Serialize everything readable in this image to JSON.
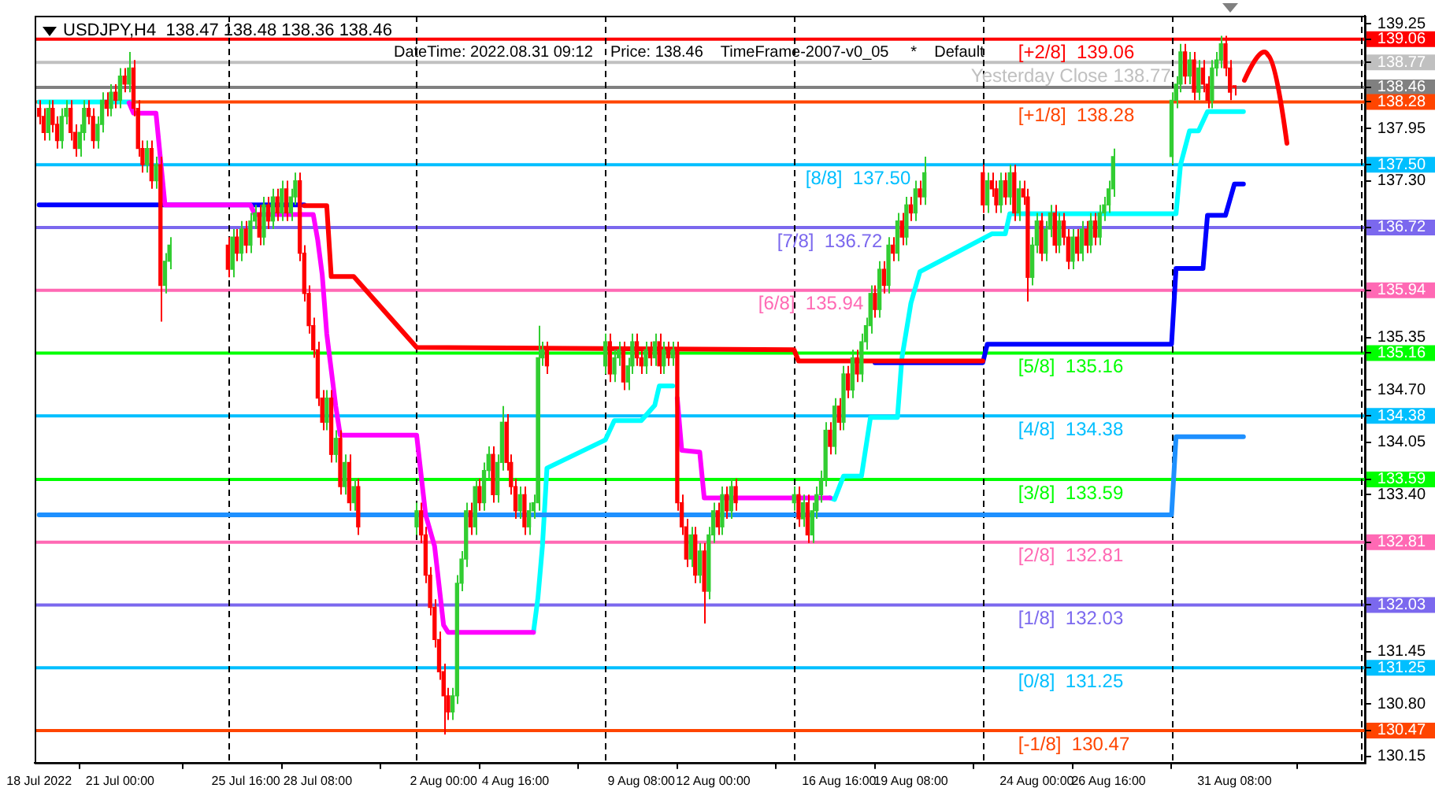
{
  "chart_data": {
    "type": "candlestick",
    "title": "USDJPY,H4  138.47 138.48 138.36 138.46",
    "annotations": [
      "DateTime: 2022.08.31 09:12    Price: 138.46    TimeFrame-2007-v0_05     *    Default"
    ],
    "x": [
      "2022-07-18T00:00",
      "2022-07-18T04:00",
      "2022-07-18T08:00",
      "2022-07-18T12:00",
      "2022-07-18T16:00",
      "2022-07-18T20:00",
      "2022-07-19T00:00",
      "2022-07-19T04:00",
      "2022-07-19T08:00",
      "2022-07-19T12:00",
      "2022-07-19T16:00",
      "2022-07-19T20:00",
      "2022-07-20T00:00",
      "2022-07-20T04:00",
      "2022-07-20T08:00",
      "2022-07-20T12:00",
      "2022-07-20T16:00",
      "2022-07-20T20:00",
      "2022-07-21T00:00",
      "2022-07-21T04:00",
      "2022-07-21T08:00",
      "2022-07-21T12:00",
      "2022-07-21T16:00",
      "2022-07-21T20:00",
      "2022-07-22T00:00",
      "2022-07-22T04:00",
      "2022-07-22T08:00",
      "2022-07-22T12:00",
      "2022-07-22T16:00",
      "2022-07-22T20:00",
      "2022-07-25T00:00",
      "2022-07-25T04:00",
      "2022-07-25T08:00",
      "2022-07-25T12:00",
      "2022-07-25T16:00",
      "2022-07-25T20:00",
      "2022-07-26T00:00",
      "2022-07-26T04:00",
      "2022-07-26T08:00",
      "2022-07-26T12:00",
      "2022-07-26T16:00",
      "2022-07-26T20:00",
      "2022-07-27T00:00",
      "2022-07-27T04:00",
      "2022-07-27T08:00",
      "2022-07-27T12:00",
      "2022-07-27T16:00",
      "2022-07-27T20:00",
      "2022-07-28T00:00",
      "2022-07-28T04:00",
      "2022-07-28T08:00",
      "2022-07-28T12:00",
      "2022-07-28T16:00",
      "2022-07-28T20:00",
      "2022-07-29T00:00",
      "2022-07-29T04:00",
      "2022-07-29T08:00",
      "2022-07-29T12:00",
      "2022-07-29T16:00",
      "2022-07-29T20:00",
      "2022-08-01T00:00",
      "2022-08-01T04:00",
      "2022-08-01T08:00",
      "2022-08-01T12:00",
      "2022-08-01T16:00",
      "2022-08-01T20:00",
      "2022-08-02T00:00",
      "2022-08-02T04:00",
      "2022-08-02T08:00",
      "2022-08-02T12:00",
      "2022-08-02T16:00",
      "2022-08-02T20:00",
      "2022-08-03T00:00",
      "2022-08-03T04:00",
      "2022-08-03T08:00",
      "2022-08-03T12:00",
      "2022-08-03T16:00",
      "2022-08-03T20:00",
      "2022-08-04T00:00",
      "2022-08-04T04:00",
      "2022-08-04T08:00",
      "2022-08-04T12:00",
      "2022-08-04T16:00",
      "2022-08-04T20:00",
      "2022-08-05T00:00",
      "2022-08-05T04:00",
      "2022-08-05T08:00",
      "2022-08-05T12:00",
      "2022-08-05T16:00",
      "2022-08-05T20:00",
      "2022-08-08T00:00",
      "2022-08-08T04:00",
      "2022-08-08T08:00",
      "2022-08-08T12:00",
      "2022-08-08T16:00",
      "2022-08-08T20:00",
      "2022-08-09T00:00",
      "2022-08-09T04:00",
      "2022-08-09T08:00",
      "2022-08-09T12:00",
      "2022-08-09T16:00",
      "2022-08-09T20:00",
      "2022-08-10T00:00",
      "2022-08-10T04:00",
      "2022-08-10T08:00",
      "2022-08-10T12:00",
      "2022-08-10T16:00",
      "2022-08-10T20:00",
      "2022-08-11T00:00",
      "2022-08-11T04:00",
      "2022-08-11T08:00",
      "2022-08-11T12:00",
      "2022-08-11T16:00",
      "2022-08-11T20:00",
      "2022-08-12T00:00",
      "2022-08-12T04:00",
      "2022-08-12T08:00",
      "2022-08-12T12:00",
      "2022-08-12T16:00",
      "2022-08-12T20:00",
      "2022-08-15T00:00",
      "2022-08-15T04:00",
      "2022-08-15T08:00",
      "2022-08-15T12:00",
      "2022-08-15T16:00",
      "2022-08-15T20:00",
      "2022-08-16T00:00",
      "2022-08-16T04:00",
      "2022-08-16T08:00",
      "2022-08-16T12:00",
      "2022-08-16T16:00",
      "2022-08-16T20:00",
      "2022-08-17T00:00",
      "2022-08-17T04:00",
      "2022-08-17T08:00",
      "2022-08-17T12:00",
      "2022-08-17T16:00",
      "2022-08-17T20:00",
      "2022-08-18T00:00",
      "2022-08-18T04:00",
      "2022-08-18T08:00",
      "2022-08-18T12:00",
      "2022-08-18T16:00",
      "2022-08-18T20:00",
      "2022-08-19T00:00",
      "2022-08-19T04:00",
      "2022-08-19T08:00",
      "2022-08-19T12:00",
      "2022-08-19T16:00",
      "2022-08-19T20:00",
      "2022-08-22T00:00",
      "2022-08-22T04:00",
      "2022-08-22T08:00",
      "2022-08-22T12:00",
      "2022-08-22T16:00",
      "2022-08-22T20:00",
      "2022-08-23T00:00",
      "2022-08-23T04:00",
      "2022-08-23T08:00",
      "2022-08-23T12:00",
      "2022-08-23T16:00",
      "2022-08-23T20:00",
      "2022-08-24T00:00",
      "2022-08-24T04:00",
      "2022-08-24T08:00",
      "2022-08-24T12:00",
      "2022-08-24T16:00",
      "2022-08-24T20:00",
      "2022-08-25T00:00",
      "2022-08-25T04:00",
      "2022-08-25T08:00",
      "2022-08-25T12:00",
      "2022-08-25T16:00",
      "2022-08-25T20:00",
      "2022-08-26T00:00",
      "2022-08-26T04:00",
      "2022-08-26T08:00",
      "2022-08-26T12:00",
      "2022-08-26T16:00",
      "2022-08-26T20:00",
      "2022-08-29T00:00",
      "2022-08-29T04:00",
      "2022-08-29T08:00",
      "2022-08-29T12:00",
      "2022-08-29T16:00",
      "2022-08-29T20:00",
      "2022-08-30T00:00",
      "2022-08-30T04:00",
      "2022-08-30T08:00",
      "2022-08-30T12:00",
      "2022-08-30T16:00",
      "2022-08-30T20:00",
      "2022-08-31T00:00",
      "2022-08-31T04:00",
      "2022-08-31T08:00"
    ],
    "ohlc": [
      [
        138.2,
        138.3,
        138.0,
        138.1
      ],
      [
        138.1,
        138.2,
        137.8,
        137.9
      ],
      [
        137.9,
        138.3,
        137.8,
        138.2
      ],
      [
        138.2,
        138.3,
        137.9,
        138.0
      ],
      [
        138.0,
        138.1,
        137.7,
        137.8
      ],
      [
        137.8,
        138.2,
        137.7,
        138.1
      ],
      [
        138.1,
        138.3,
        138.0,
        138.2
      ],
      [
        138.2,
        138.3,
        137.8,
        137.9
      ],
      [
        137.9,
        138.0,
        137.6,
        137.7
      ],
      [
        137.7,
        138.0,
        137.6,
        137.9
      ],
      [
        137.9,
        138.3,
        137.8,
        138.2
      ],
      [
        138.2,
        138.3,
        138.0,
        138.1
      ],
      [
        138.1,
        138.2,
        137.7,
        137.8
      ],
      [
        137.8,
        138.1,
        137.7,
        138.0
      ],
      [
        138.0,
        138.4,
        137.9,
        138.3
      ],
      [
        138.3,
        138.4,
        138.1,
        138.2
      ],
      [
        138.2,
        138.5,
        138.1,
        138.4
      ],
      [
        138.4,
        138.5,
        138.2,
        138.3
      ],
      [
        138.3,
        138.7,
        138.2,
        138.6
      ],
      [
        138.6,
        138.7,
        138.4,
        138.5
      ],
      [
        138.5,
        138.9,
        138.4,
        138.7
      ],
      [
        138.7,
        138.8,
        138.1,
        138.2
      ],
      [
        138.2,
        138.3,
        137.6,
        137.7
      ],
      [
        137.7,
        137.8,
        137.4,
        137.5
      ],
      [
        137.5,
        137.8,
        137.4,
        137.7
      ],
      [
        137.7,
        137.8,
        137.2,
        137.3
      ],
      [
        137.3,
        137.6,
        137.2,
        137.5
      ],
      [
        137.5,
        137.6,
        135.55,
        136.0
      ],
      [
        136.0,
        136.4,
        135.9,
        136.3
      ],
      [
        136.3,
        136.6,
        136.2,
        136.5
      ],
      [
        136.5,
        136.6,
        136.1,
        136.2
      ],
      [
        136.2,
        136.7,
        136.1,
        136.6
      ],
      [
        136.6,
        136.7,
        136.3,
        136.4
      ],
      [
        136.4,
        136.8,
        136.3,
        136.7
      ],
      [
        136.7,
        136.8,
        136.4,
        136.5
      ],
      [
        136.5,
        136.9,
        136.4,
        136.8
      ],
      [
        136.8,
        137.0,
        136.7,
        136.9
      ],
      [
        136.9,
        137.0,
        136.5,
        136.6
      ],
      [
        136.6,
        137.1,
        136.5,
        137.0
      ],
      [
        137.0,
        137.1,
        136.7,
        136.8
      ],
      [
        136.8,
        137.2,
        136.7,
        137.1
      ],
      [
        137.1,
        137.2,
        136.8,
        136.9
      ],
      [
        136.9,
        137.3,
        136.8,
        137.2
      ],
      [
        137.2,
        137.3,
        136.8,
        136.9
      ],
      [
        136.9,
        137.2,
        136.8,
        137.1
      ],
      [
        137.1,
        137.4,
        137.0,
        137.3
      ],
      [
        137.3,
        137.4,
        136.3,
        136.4
      ],
      [
        136.4,
        136.5,
        135.8,
        135.9
      ],
      [
        135.9,
        136.0,
        135.4,
        135.5
      ],
      [
        135.5,
        135.6,
        135.1,
        135.2
      ],
      [
        135.2,
        135.3,
        134.5,
        134.6
      ],
      [
        134.6,
        134.7,
        134.2,
        134.3
      ],
      [
        134.3,
        134.7,
        134.2,
        134.6
      ],
      [
        134.6,
        134.7,
        133.8,
        133.9
      ],
      [
        133.9,
        134.2,
        133.8,
        134.1
      ],
      [
        134.1,
        134.2,
        133.4,
        133.5
      ],
      [
        133.5,
        133.9,
        133.4,
        133.8
      ],
      [
        133.8,
        133.9,
        133.2,
        133.3
      ],
      [
        133.3,
        133.6,
        133.2,
        133.5
      ],
      [
        133.5,
        133.6,
        132.9,
        133.0
      ],
      [
        133.0,
        133.3,
        132.9,
        133.2
      ],
      [
        133.2,
        133.3,
        132.8,
        132.9
      ],
      [
        132.9,
        133.0,
        132.3,
        132.4
      ],
      [
        132.4,
        132.5,
        131.9,
        132.0
      ],
      [
        132.0,
        132.1,
        131.5,
        131.6
      ],
      [
        131.6,
        131.7,
        131.1,
        131.2
      ],
      [
        131.2,
        131.3,
        130.42,
        130.9
      ],
      [
        130.9,
        131.0,
        130.6,
        130.7
      ],
      [
        130.7,
        131.0,
        130.6,
        130.9
      ],
      [
        130.9,
        132.4,
        130.8,
        132.3
      ],
      [
        132.3,
        132.7,
        132.2,
        132.6
      ],
      [
        132.6,
        133.3,
        132.5,
        133.2
      ],
      [
        133.2,
        133.3,
        132.9,
        133.0
      ],
      [
        133.0,
        133.6,
        132.9,
        133.5
      ],
      [
        133.5,
        133.6,
        133.2,
        133.3
      ],
      [
        133.3,
        133.8,
        133.2,
        133.7
      ],
      [
        133.7,
        134.0,
        133.6,
        133.9
      ],
      [
        133.9,
        134.0,
        133.3,
        133.4
      ],
      [
        133.4,
        133.9,
        133.3,
        133.8
      ],
      [
        133.8,
        134.5,
        133.7,
        134.3
      ],
      [
        134.3,
        134.4,
        133.7,
        133.8
      ],
      [
        133.8,
        133.9,
        133.4,
        133.5
      ],
      [
        133.5,
        133.6,
        133.1,
        133.2
      ],
      [
        133.2,
        133.5,
        133.1,
        133.4
      ],
      [
        133.4,
        133.5,
        132.9,
        133.0
      ],
      [
        133.0,
        133.3,
        132.9,
        133.2
      ],
      [
        133.2,
        133.4,
        133.1,
        133.3
      ],
      [
        133.3,
        135.5,
        133.2,
        135.1
      ],
      [
        135.1,
        135.3,
        135.0,
        135.2
      ],
      [
        135.2,
        135.3,
        134.9,
        135.0
      ],
      [
        135.0,
        135.4,
        134.9,
        135.3
      ],
      [
        135.3,
        135.4,
        134.8,
        134.9
      ],
      [
        134.9,
        135.2,
        134.8,
        135.1
      ],
      [
        135.1,
        135.3,
        135.0,
        135.2
      ],
      [
        135.2,
        135.3,
        134.7,
        134.8
      ],
      [
        134.8,
        135.1,
        134.7,
        135.0
      ],
      [
        135.0,
        135.4,
        134.9,
        135.3
      ],
      [
        135.3,
        135.4,
        135.0,
        135.1
      ],
      [
        135.1,
        135.2,
        134.9,
        135.0
      ],
      [
        135.0,
        135.3,
        134.9,
        135.2
      ],
      [
        135.2,
        135.3,
        135.0,
        135.1
      ],
      [
        135.1,
        135.4,
        135.0,
        135.3
      ],
      [
        135.3,
        135.4,
        134.9,
        135.0
      ],
      [
        135.0,
        135.3,
        134.9,
        135.2
      ],
      [
        135.2,
        135.3,
        135.0,
        135.1
      ],
      [
        135.1,
        135.3,
        135.0,
        135.2
      ],
      [
        135.2,
        135.3,
        133.2,
        133.3
      ],
      [
        133.3,
        133.4,
        132.9,
        133.0
      ],
      [
        133.0,
        133.1,
        132.5,
        132.6
      ],
      [
        132.6,
        133.0,
        132.5,
        132.9
      ],
      [
        132.9,
        133.0,
        132.3,
        132.4
      ],
      [
        132.4,
        132.8,
        132.3,
        132.7
      ],
      [
        132.7,
        132.8,
        131.8,
        132.2
      ],
      [
        132.2,
        133.0,
        132.1,
        132.9
      ],
      [
        132.9,
        133.3,
        132.8,
        133.2
      ],
      [
        133.2,
        133.3,
        132.9,
        133.0
      ],
      [
        133.0,
        133.5,
        132.9,
        133.4
      ],
      [
        133.4,
        133.5,
        133.1,
        133.2
      ],
      [
        133.2,
        133.6,
        133.1,
        133.5
      ],
      [
        133.5,
        133.6,
        133.2,
        133.3
      ],
      [
        133.3,
        133.5,
        133.2,
        133.4
      ],
      [
        133.4,
        133.5,
        133.0,
        133.1
      ],
      [
        133.1,
        133.4,
        133.0,
        133.3
      ],
      [
        133.3,
        133.4,
        132.8,
        132.9
      ],
      [
        132.9,
        133.3,
        132.8,
        133.2
      ],
      [
        133.2,
        133.5,
        133.1,
        133.4
      ],
      [
        133.4,
        133.7,
        133.3,
        133.6
      ],
      [
        133.6,
        134.3,
        133.5,
        134.2
      ],
      [
        134.2,
        134.3,
        133.9,
        134.0
      ],
      [
        134.0,
        134.6,
        133.9,
        134.5
      ],
      [
        134.5,
        134.6,
        134.2,
        134.3
      ],
      [
        134.3,
        135.0,
        134.2,
        134.9
      ],
      [
        134.9,
        135.0,
        134.6,
        134.7
      ],
      [
        134.7,
        135.2,
        134.6,
        135.1
      ],
      [
        135.1,
        135.2,
        134.8,
        134.9
      ],
      [
        134.9,
        135.4,
        134.8,
        135.3
      ],
      [
        135.3,
        135.6,
        135.2,
        135.5
      ],
      [
        135.5,
        136.0,
        135.4,
        135.9
      ],
      [
        135.9,
        136.0,
        135.6,
        135.7
      ],
      [
        135.7,
        136.3,
        135.6,
        136.2
      ],
      [
        136.2,
        136.3,
        135.9,
        136.0
      ],
      [
        136.0,
        136.6,
        135.9,
        136.5
      ],
      [
        136.5,
        136.6,
        136.3,
        136.4
      ],
      [
        136.4,
        136.9,
        136.3,
        136.8
      ],
      [
        136.8,
        136.9,
        136.5,
        136.6
      ],
      [
        136.6,
        137.1,
        136.5,
        137.0
      ],
      [
        137.0,
        137.1,
        136.8,
        136.9
      ],
      [
        136.9,
        137.3,
        136.8,
        137.2
      ],
      [
        137.2,
        137.3,
        137.0,
        137.1
      ],
      [
        137.1,
        137.6,
        137.0,
        137.4
      ],
      [
        137.4,
        137.5,
        136.9,
        137.0
      ],
      [
        137.0,
        137.4,
        136.9,
        137.3
      ],
      [
        137.3,
        137.4,
        137.1,
        137.2
      ],
      [
        137.2,
        137.3,
        136.9,
        137.0
      ],
      [
        137.0,
        137.4,
        136.9,
        137.3
      ],
      [
        137.3,
        137.4,
        137.0,
        137.1
      ],
      [
        137.1,
        137.5,
        137.0,
        137.4
      ],
      [
        137.4,
        137.5,
        136.8,
        136.9
      ],
      [
        136.9,
        137.3,
        136.8,
        137.2
      ],
      [
        137.2,
        137.3,
        137.0,
        137.1
      ],
      [
        137.1,
        137.2,
        135.8,
        136.1
      ],
      [
        136.1,
        136.6,
        136.0,
        136.5
      ],
      [
        136.5,
        136.9,
        136.4,
        136.8
      ],
      [
        136.8,
        136.9,
        136.3,
        136.4
      ],
      [
        136.4,
        136.8,
        136.3,
        136.7
      ],
      [
        136.7,
        137.0,
        136.6,
        136.9
      ],
      [
        136.9,
        137.0,
        136.4,
        136.5
      ],
      [
        136.5,
        136.9,
        136.4,
        136.8
      ],
      [
        136.8,
        136.9,
        136.5,
        136.6
      ],
      [
        136.6,
        136.7,
        136.2,
        136.3
      ],
      [
        136.3,
        136.7,
        136.2,
        136.6
      ],
      [
        136.6,
        136.7,
        136.3,
        136.4
      ],
      [
        136.4,
        136.8,
        136.3,
        136.7
      ],
      [
        136.7,
        136.8,
        136.4,
        136.5
      ],
      [
        136.5,
        136.9,
        136.4,
        136.8
      ],
      [
        136.8,
        136.9,
        136.5,
        136.6
      ],
      [
        136.6,
        137.0,
        136.5,
        136.9
      ],
      [
        136.9,
        137.1,
        136.8,
        137.0
      ],
      [
        137.0,
        137.3,
        136.9,
        137.2
      ],
      [
        137.2,
        137.7,
        137.1,
        137.6
      ],
      [
        137.6,
        138.4,
        137.5,
        138.3
      ],
      [
        138.3,
        138.6,
        138.2,
        138.5
      ],
      [
        138.5,
        139.0,
        138.4,
        138.9
      ],
      [
        138.9,
        139.0,
        138.5,
        138.6
      ],
      [
        138.6,
        138.9,
        138.5,
        138.8
      ],
      [
        138.8,
        138.9,
        138.3,
        138.4
      ],
      [
        138.4,
        138.8,
        138.3,
        138.7
      ],
      [
        138.7,
        138.8,
        138.4,
        138.5
      ],
      [
        138.5,
        138.6,
        138.2,
        138.3
      ],
      [
        138.3,
        138.8,
        138.2,
        138.7
      ],
      [
        138.7,
        138.9,
        138.6,
        138.8
      ],
      [
        138.8,
        139.1,
        138.7,
        139.0
      ],
      [
        139.0,
        139.1,
        138.6,
        138.7
      ],
      [
        138.7,
        138.8,
        138.3,
        138.4
      ],
      [
        138.47,
        138.48,
        138.36,
        138.46
      ]
    ],
    "series": [
      {
        "type": "line",
        "color": "#ff00ff",
        "x": [
          "2022-07-21T08:00",
          "2022-07-21T12:00",
          "2022-07-22T08:00",
          "2022-07-22T16:00",
          "2022-07-25T20:00",
          "2022-07-26T00:00",
          "2022-07-28T04:00",
          "2022-07-28T08:00",
          "2022-07-28T12:00",
          "2022-07-28T16:00",
          "2022-07-29T00:00",
          "2022-07-29T04:00",
          "2022-08-01T00:00",
          "2022-08-01T08:00",
          "2022-08-01T16:00",
          "2022-08-02T00:00",
          "2022-08-02T04:00",
          "2022-08-05T08:00"
        ],
        "values": [
          138.27,
          138.14,
          138.14,
          137.0,
          137.0,
          136.88,
          136.88,
          136.56,
          136.13,
          135.4,
          134.5,
          134.14,
          134.14,
          133.15,
          132.76,
          131.78,
          131.69,
          131.69
        ]
      },
      {
        "type": "line",
        "color": "#ff00ff",
        "x": [
          "2022-08-10T16:00",
          "2022-08-10T20:00",
          "2022-08-11T12:00",
          "2022-08-11T16:00",
          "2022-08-16T08:00"
        ],
        "values": [
          134.6,
          133.95,
          133.93,
          133.36,
          133.36
        ]
      },
      {
        "type": "line",
        "color": "#ff0000",
        "x": [
          "2022-07-27T20:00",
          "2022-07-28T16:00",
          "2022-07-28T20:00",
          "2022-07-29T16:00",
          "2022-08-01T00:00",
          "2022-08-15T00:00",
          "2022-08-15T04:00",
          "2022-08-22T00:00"
        ],
        "values": [
          136.99,
          136.99,
          136.11,
          136.11,
          135.23,
          135.2,
          135.06,
          135.06
        ]
      },
      {
        "type": "line",
        "color": "#0000ff",
        "x": [
          "2022-07-18T00:00",
          "2022-07-27T20:00"
        ],
        "values": [
          137.0,
          137.0
        ]
      },
      {
        "type": "line",
        "color": "#0000ff",
        "x": [
          "2022-08-18T00:00",
          "2022-08-22T00:00",
          "2022-08-22T04:00",
          "2022-08-29T00:00",
          "2022-08-29T04:00",
          "2022-08-30T04:00",
          "2022-08-30T08:00",
          "2022-08-31T00:00",
          "2022-08-31T08:00",
          "2022-08-31T16:00"
        ],
        "values": [
          135.04,
          135.04,
          135.27,
          135.27,
          136.21,
          136.21,
          136.87,
          136.87,
          137.26,
          137.26
        ]
      },
      {
        "type": "line",
        "color": "#1e90ff",
        "x": [
          "2022-07-18T00:00",
          "2022-08-29T00:00",
          "2022-08-29T04:00",
          "2022-08-31T16:00"
        ],
        "values": [
          133.15,
          133.15,
          134.12,
          134.12
        ]
      },
      {
        "type": "line",
        "color": "#00ffff",
        "x": [
          "2022-07-18T00:00",
          "2022-07-21T12:00"
        ],
        "values": [
          138.28,
          138.28
        ]
      },
      {
        "type": "line",
        "color": "#00ffff",
        "x": [
          "2022-08-05T08:00",
          "2022-08-05T12:00",
          "2022-08-05T16:00",
          "2022-08-05T20:00",
          "2022-08-08T00:00",
          "2022-08-08T08:00",
          "2022-08-09T08:00",
          "2022-08-09T20:00",
          "2022-08-10T00:00",
          "2022-08-10T12:00"
        ],
        "values": [
          131.69,
          132.12,
          132.76,
          133.73,
          134.08,
          134.32,
          134.32,
          134.51,
          134.75,
          134.75
        ]
      },
      {
        "type": "line",
        "color": "#00ffff",
        "x": [
          "2022-08-16T08:00",
          "2022-08-16T12:00",
          "2022-08-16T20:00",
          "2022-08-17T12:00",
          "2022-08-17T20:00",
          "2022-08-18T20:00",
          "2022-08-19T00:00",
          "2022-08-19T08:00",
          "2022-08-19T16:00",
          "2022-08-22T08:00",
          "2022-08-22T20:00",
          "2022-08-23T00:00",
          "2022-08-29T04:00",
          "2022-08-29T08:00",
          "2022-08-29T16:00",
          "2022-08-30T00:00",
          "2022-08-30T08:00",
          "2022-08-31T16:00"
        ],
        "values": [
          133.36,
          133.34,
          133.63,
          133.63,
          134.36,
          134.36,
          135.1,
          135.78,
          136.17,
          136.64,
          136.64,
          136.89,
          136.89,
          137.5,
          137.92,
          137.92,
          138.16,
          138.16
        ]
      }
    ],
    "xlim": [
      "2022-07-17T20:00",
      "2022-09-05T04:00"
    ],
    "xticks": [
      {
        "value": "2022-07-18T00:00",
        "label": "18 Jul 2022"
      },
      {
        "value": "2022-07-21T00:00",
        "label": "21 Jul 00:00"
      },
      {
        "value": "2022-07-25T16:00",
        "label": "25 Jul 16:00"
      },
      {
        "value": "2022-07-28T08:00",
        "label": "28 Jul 08:00"
      },
      {
        "value": "2022-08-02T00:00",
        "label": "2 Aug 00:00"
      },
      {
        "value": "2022-08-04T16:00",
        "label": "4 Aug 16:00"
      },
      {
        "value": "2022-08-09T08:00",
        "label": "9 Aug 08:00"
      },
      {
        "value": "2022-08-12T00:00",
        "label": "12 Aug 00:00"
      },
      {
        "value": "2022-08-16T16:00",
        "label": "16 Aug 16:00"
      },
      {
        "value": "2022-08-19T08:00",
        "label": "19 Aug 08:00"
      },
      {
        "value": "2022-08-24T00:00",
        "label": "24 Aug 00:00"
      },
      {
        "value": "2022-08-26T16:00",
        "label": "26 Aug 16:00"
      },
      {
        "value": "2022-08-31T08:00",
        "label": "31 Aug 08:00"
      }
    ],
    "ylim": [
      130.07,
      139.35
    ],
    "yticks": [
      139.25,
      139.06,
      138.77,
      138.46,
      138.28,
      137.95,
      {
        "value": 137.5,
        "label": "137.50"
      },
      {
        "value": 137.3,
        "label": "137.30"
      },
      136.72,
      135.94,
      135.35,
      135.16,
      {
        "value": 134.7,
        "label": "134.70"
      },
      134.38,
      134.05,
      133.59,
      {
        "value": 133.4,
        "label": "133.40"
      },
      132.81,
      132.03,
      131.45,
      131.25,
      {
        "value": 130.8,
        "label": "130.80"
      },
      130.47,
      130.15
    ],
    "ref_lines": [
      {
        "axis": "y",
        "value": 139.06,
        "label": "[+2/8]  139.06",
        "color": "#ff0000"
      },
      {
        "axis": "y",
        "value": 138.77,
        "label": "Yesterday Close 138.77",
        "color": "#c0c0c0"
      },
      {
        "axis": "y",
        "value": 138.46,
        "label": null,
        "color": "#808080"
      },
      {
        "axis": "y",
        "value": 138.28,
        "label": "[+1/8]  138.28",
        "color": "#ff4500"
      },
      {
        "axis": "y",
        "value": 137.5,
        "label": "[8/8]  137.50",
        "color": "#00bfff"
      },
      {
        "axis": "y",
        "value": 136.72,
        "label": "[7/8]  136.72",
        "color": "#7b68ee"
      },
      {
        "axis": "y",
        "value": 135.94,
        "label": "[6/8]  135.94",
        "color": "#ff69b4"
      },
      {
        "axis": "y",
        "value": 135.16,
        "label": "[5/8]  135.16",
        "color": "#00ff00"
      },
      {
        "axis": "y",
        "value": 134.38,
        "label": "[4/8]  134.38",
        "color": "#00bfff"
      },
      {
        "axis": "y",
        "value": 133.59,
        "label": "[3/8]  133.59",
        "color": "#00ff00"
      },
      {
        "axis": "y",
        "value": 132.81,
        "label": "[2/8]  132.81",
        "color": "#ff69b4"
      },
      {
        "axis": "y",
        "value": 132.03,
        "label": "[1/8]  132.03",
        "color": "#7b68ee"
      },
      {
        "axis": "y",
        "value": 131.25,
        "label": "[0/8]  131.25",
        "color": "#00bfff"
      },
      {
        "axis": "y",
        "value": 130.47,
        "label": "[-1/8]  130.47",
        "color": "#ff4500"
      },
      {
        "axis": "x",
        "value": "2022-07-25T00:00",
        "label": null,
        "color": "#000000",
        "line_style": "dashed"
      },
      {
        "axis": "x",
        "value": "2022-08-01T00:00",
        "label": null,
        "color": "#000000",
        "line_style": "dashed"
      },
      {
        "axis": "x",
        "value": "2022-08-08T00:00",
        "label": null,
        "color": "#000000",
        "line_style": "dashed"
      },
      {
        "axis": "x",
        "value": "2022-08-15T00:00",
        "label": null,
        "color": "#000000",
        "line_style": "dashed"
      },
      {
        "axis": "x",
        "value": "2022-08-22T00:00",
        "label": null,
        "color": "#000000",
        "line_style": "dashed"
      },
      {
        "axis": "x",
        "value": "2022-08-29T00:00",
        "label": null,
        "color": "#000000",
        "line_style": "dashed"
      },
      {
        "axis": "x",
        "value": "2022-09-05T00:00",
        "label": null,
        "color": "#000000",
        "line_style": "dashed"
      }
    ],
    "grid": false,
    "legend": false
  }
}
